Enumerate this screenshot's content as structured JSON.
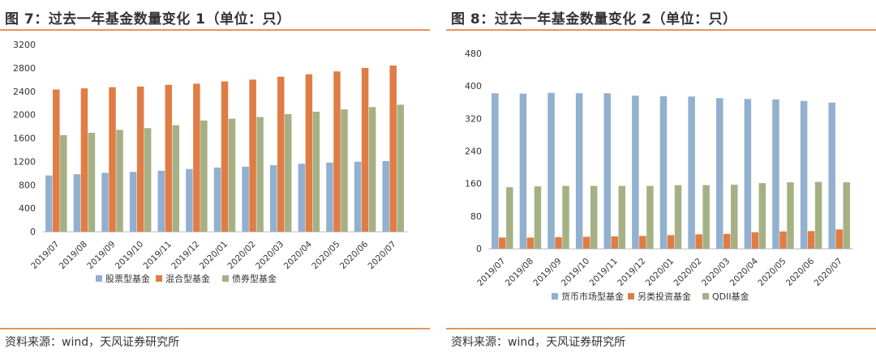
{
  "colors": {
    "rule": "#e8935a",
    "series": [
      "#92b0cf",
      "#e07c45",
      "#a5b184"
    ]
  },
  "charts": [
    {
      "title": "图 7：过去一年基金数量变化 1（单位：只）",
      "source": "资料来源：wind，天风证券研究所",
      "chart_data": {
        "type": "bar",
        "categories": [
          "2019/07",
          "2019/08",
          "2019/09",
          "2019/10",
          "2019/11",
          "2019/12",
          "2020/01",
          "2020/02",
          "2020/03",
          "2020/04",
          "2020/05",
          "2020/06",
          "2020/07"
        ],
        "yticks": [
          "0",
          "400",
          "800",
          "1200",
          "1600",
          "2000",
          "2400",
          "2800",
          "3200"
        ],
        "ylim": [
          0,
          3200
        ],
        "legend_position": "bottom",
        "series": [
          {
            "name": "股票型基金",
            "values": [
              960,
              980,
              1005,
              1020,
              1040,
              1070,
              1095,
              1110,
              1135,
              1160,
              1180,
              1195,
              1205
            ]
          },
          {
            "name": "混合型基金",
            "values": [
              2430,
              2450,
              2470,
              2480,
              2510,
              2530,
              2570,
              2600,
              2650,
              2690,
              2740,
              2800,
              2840
            ]
          },
          {
            "name": "债券型基金",
            "values": [
              1650,
              1690,
              1740,
              1770,
              1820,
              1900,
              1930,
              1960,
              2010,
              2050,
              2090,
              2130,
              2170
            ]
          }
        ]
      }
    },
    {
      "title": "图 8：过去一年基金数量变化 2（单位：只）",
      "source": "资料来源：wind，天风证券研究所",
      "chart_data": {
        "type": "bar",
        "categories": [
          "2019/07",
          "2019/08",
          "2019/09",
          "2019/10",
          "2019/11",
          "2019/12",
          "2020/01",
          "2020/02",
          "2020/03",
          "2020/04",
          "2020/05",
          "2020/06",
          "2020/07"
        ],
        "yticks": [
          "0",
          "80",
          "160",
          "240",
          "320",
          "400",
          "480"
        ],
        "ylim": [
          0,
          480
        ],
        "legend_position": "bottom",
        "series": [
          {
            "name": "货币市场型基金",
            "values": [
              382,
              381,
              383,
              382,
              382,
              376,
              375,
              374,
              370,
              368,
              367,
              363,
              359
            ]
          },
          {
            "name": "另类投资基金",
            "values": [
              27,
              27,
              28,
              29,
              30,
              31,
              33,
              35,
              36,
              40,
              42,
              43,
              47
            ]
          },
          {
            "name": "QDII基金",
            "values": [
              151,
              153,
              154,
              154,
              154,
              154,
              156,
              156,
              157,
              161,
              163,
              164,
              163
            ]
          }
        ]
      }
    }
  ]
}
